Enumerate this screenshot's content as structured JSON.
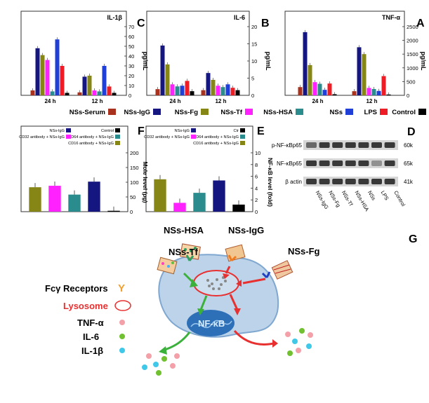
{
  "figure": {
    "panel_letters": [
      "A",
      "B",
      "C",
      "D",
      "E",
      "F",
      "G"
    ]
  },
  "legend": {
    "items": [
      {
        "label": "Control",
        "color": "#000000"
      },
      {
        "label": "LPS",
        "color": "#ee1c24"
      },
      {
        "label": "NSs",
        "color": "#1f3fd6"
      },
      {
        "label": "NSs-HSA",
        "color": "#2a8c8c"
      },
      {
        "label": "NSs-Tf",
        "color": "#ff22ff"
      },
      {
        "label": "NSs-Fg",
        "color": "#868616"
      },
      {
        "label": "NSs-IgG",
        "color": "#161680"
      },
      {
        "label": "NSs-Serum",
        "color": "#a8321e"
      }
    ]
  },
  "chart_data": [
    {
      "panel": "A",
      "type": "bar",
      "title": "TNF-α",
      "ylabel": "pg/mL",
      "ylim": [
        0,
        2500
      ],
      "yticks": [
        0,
        500,
        1000,
        1500,
        2000,
        2500
      ],
      "categories": [
        "12 h",
        "24 h"
      ],
      "series": [
        {
          "name": "Control",
          "values": [
            30,
            40
          ]
        },
        {
          "name": "LPS",
          "values": [
            700,
            430
          ]
        },
        {
          "name": "NSs",
          "values": [
            160,
            200
          ]
        },
        {
          "name": "NSs-HSA",
          "values": [
            230,
            420
          ]
        },
        {
          "name": "NSs-Tf",
          "values": [
            270,
            480
          ]
        },
        {
          "name": "NSs-Fg",
          "values": [
            1500,
            1100
          ]
        },
        {
          "name": "NSs-IgG",
          "values": [
            1750,
            2300
          ]
        },
        {
          "name": "NSs-Serum",
          "values": [
            150,
            300
          ]
        }
      ]
    },
    {
      "panel": "B",
      "type": "bar",
      "title": "IL-6",
      "ylabel": "pg/mL",
      "ylim": [
        0,
        20
      ],
      "yticks": [
        0,
        5,
        10,
        15,
        20
      ],
      "categories": [
        "12 h",
        "24 h"
      ],
      "series": [
        {
          "name": "Control",
          "values": [
            1.5,
            1.2
          ]
        },
        {
          "name": "LPS",
          "values": [
            2.2,
            4.2
          ]
        },
        {
          "name": "NSs",
          "values": [
            3.2,
            2.8
          ]
        },
        {
          "name": "NSs-HSA",
          "values": [
            2.4,
            2.6
          ]
        },
        {
          "name": "NSs-Tf",
          "values": [
            2.8,
            3.2
          ]
        },
        {
          "name": "NSs-Fg",
          "values": [
            4.5,
            9.0
          ]
        },
        {
          "name": "NSs-IgG",
          "values": [
            6.5,
            14.5
          ]
        },
        {
          "name": "NSs-Serum",
          "values": [
            1.5,
            1.8
          ]
        }
      ]
    },
    {
      "panel": "C",
      "type": "bar",
      "title": "IL-1β",
      "ylabel": "pg/mL",
      "ylim": [
        0,
        70
      ],
      "yticks": [
        0,
        10,
        20,
        30,
        40,
        50,
        60,
        70
      ],
      "categories": [
        "12 h",
        "24 h"
      ],
      "series": [
        {
          "name": "Control",
          "values": [
            2.5,
            2.5
          ]
        },
        {
          "name": "LPS",
          "values": [
            9,
            30
          ]
        },
        {
          "name": "NSs",
          "values": [
            30,
            57
          ]
        },
        {
          "name": "NSs-HSA",
          "values": [
            4,
            4
          ]
        },
        {
          "name": "NSs-Tf",
          "values": [
            5,
            36
          ]
        },
        {
          "name": "NSs-Fg",
          "values": [
            20,
            41
          ]
        },
        {
          "name": "NSs-IgG",
          "values": [
            19,
            48
          ]
        },
        {
          "name": "NSs-Serum",
          "values": [
            3,
            5
          ]
        }
      ]
    },
    {
      "panel": "E",
      "type": "bar",
      "ylabel": "NF-κB level (fold)",
      "ylim": [
        0,
        10
      ],
      "yticks": [
        0,
        2,
        4,
        6,
        8,
        10
      ],
      "categories": [
        "Ctr",
        "NSs-IgG",
        "CD64 antibody + NSs-IgG",
        "CD32 antibody + NSs-IgG",
        "CD16 antibody + NSs-IgG"
      ],
      "values": [
        1.2,
        5.3,
        3.2,
        1.5,
        5.5
      ],
      "colors": [
        "#000000",
        "#161680",
        "#2a8c8c",
        "#ff22ff",
        "#868616"
      ],
      "legend": [
        {
          "label": "Ctr",
          "color": "#000000"
        },
        {
          "label": "NSs-IgG",
          "color": "#161680"
        },
        {
          "label": "CD64 antibody + NSs-IgG",
          "color": "#2a8c8c"
        },
        {
          "label": "CD32 antibody + NSs-IgG",
          "color": "#ff22ff"
        },
        {
          "label": "CD16 antibody + NSs-IgG",
          "color": "#868616"
        }
      ]
    },
    {
      "panel": "F",
      "type": "bar",
      "ylabel": "Mole level (pg)",
      "ylim": [
        0,
        200
      ],
      "yticks": [
        0,
        50,
        100,
        150,
        200
      ],
      "categories": [
        "Control",
        "NSs-IgG",
        "CD64 antibody + NSs-IgG",
        "CD32 antibody + NSs-IgG",
        "CD16 antibody + NSs-IgG"
      ],
      "values": [
        3,
        102,
        58,
        88,
        83
      ],
      "colors": [
        "#000000",
        "#161680",
        "#2a8c8c",
        "#ff22ff",
        "#868616"
      ],
      "legend": [
        {
          "label": "Control",
          "color": "#000000"
        },
        {
          "label": "NSs-IgG",
          "color": "#161680"
        },
        {
          "label": "CD64 antibody + NSs-IgG",
          "color": "#2a8c8c"
        },
        {
          "label": "CD32 antibody + NSs-IgG",
          "color": "#ff22ff"
        },
        {
          "label": "CD16 antibody + NSs-IgG",
          "color": "#868616"
        }
      ]
    }
  ],
  "western_blot": {
    "row_labels": [
      "p-NF-κBp65",
      "NF-κBp65",
      "β actin"
    ],
    "kda_labels": [
      "60k",
      "65k",
      "41k"
    ],
    "lane_labels": [
      "Control",
      "LPS",
      "NSs",
      "NSs-HSA",
      "NSs-Tf",
      "NSs-Fg",
      "NSs-IgG"
    ]
  },
  "schematic": {
    "nanosheet_labels": [
      "NSs-Fg",
      "NSs-Tf",
      "NSs-HSA",
      "NSs-IgG"
    ],
    "nucleus_label": "NF-κB",
    "key": [
      {
        "label": "Fcγ Receptors",
        "symbol": "Y",
        "color": "#f0a030"
      },
      {
        "label": "Lysosome",
        "color": "#e83030"
      },
      {
        "label": "TNF-α",
        "color": "#f4a0a8"
      },
      {
        "label": "IL-6",
        "color": "#70c030"
      },
      {
        "label": "IL-1β",
        "color": "#40c8e8"
      }
    ]
  }
}
